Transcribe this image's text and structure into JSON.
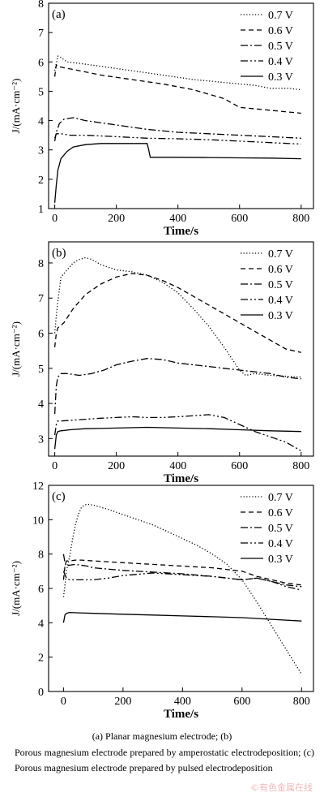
{
  "figure": {
    "caption_line1": "(a) Planar magnesium electrode; (b)",
    "caption_line2": "Porous magnesium electrode prepared by amperostatic electrodeposition; (c) Porous magnesium electrode prepared by pulsed electrodeposition",
    "watermark": "©有色金属在线"
  },
  "chart_data": [
    {
      "type": "line",
      "panel_label": "(a)",
      "xlabel": "Time/s",
      "ylabel": "J/(mA·cm⁻²)",
      "xlim": [
        -20,
        840
      ],
      "ylim": [
        1,
        8
      ],
      "xticks": [
        0,
        200,
        400,
        600,
        800
      ],
      "yticks": [
        1,
        2,
        3,
        4,
        5,
        6,
        7,
        8
      ],
      "grid": false,
      "legend_position": "top-right",
      "series": [
        {
          "name": "0.7 V",
          "dash": "1.2 2.4",
          "x": [
            0,
            10,
            20,
            40,
            80,
            150,
            250,
            350,
            450,
            550,
            650,
            700,
            760,
            800
          ],
          "y": [
            5.7,
            6.2,
            6.15,
            6.0,
            5.95,
            5.85,
            5.7,
            5.55,
            5.4,
            5.3,
            5.2,
            5.1,
            5.1,
            5.05
          ]
        },
        {
          "name": "0.6 V",
          "dash": "6 4",
          "x": [
            0,
            5,
            10,
            30,
            80,
            150,
            250,
            350,
            450,
            550,
            600,
            650,
            700,
            800
          ],
          "y": [
            5.5,
            5.9,
            5.85,
            5.8,
            5.7,
            5.55,
            5.4,
            5.25,
            5.05,
            4.75,
            4.45,
            4.4,
            4.35,
            4.25
          ]
        },
        {
          "name": "0.5 V",
          "dash": "9 3 2 3",
          "x": [
            0,
            5,
            15,
            30,
            60,
            100,
            200,
            300,
            400,
            500,
            600,
            700,
            800
          ],
          "y": [
            3.3,
            3.6,
            3.9,
            4.05,
            4.1,
            4.0,
            3.85,
            3.7,
            3.6,
            3.55,
            3.5,
            3.45,
            3.4
          ]
        },
        {
          "name": "0.4 V",
          "dash": "9 3 2 3 2 3",
          "x": [
            0,
            5,
            20,
            50,
            100,
            200,
            300,
            400,
            500,
            600,
            700,
            800
          ],
          "y": [
            3.4,
            3.55,
            3.55,
            3.5,
            3.5,
            3.45,
            3.4,
            3.38,
            3.35,
            3.3,
            3.25,
            3.2
          ]
        },
        {
          "name": "0.3 V",
          "dash": "",
          "x": [
            0,
            5,
            10,
            20,
            40,
            60,
            100,
            150,
            200,
            250,
            300,
            305,
            310,
            400,
            500,
            600,
            700,
            800
          ],
          "y": [
            1.2,
            1.8,
            2.3,
            2.7,
            2.95,
            3.1,
            3.18,
            3.22,
            3.22,
            3.22,
            3.22,
            3.0,
            2.75,
            2.75,
            2.74,
            2.73,
            2.72,
            2.7
          ]
        }
      ]
    },
    {
      "type": "line",
      "panel_label": "(b)",
      "xlabel": "Time/s",
      "ylabel": "J/(mA·cm⁻²)",
      "xlim": [
        -20,
        840
      ],
      "ylim": [
        2.5,
        8.6
      ],
      "xticks": [
        0,
        200,
        400,
        600,
        800
      ],
      "yticks": [
        3,
        4,
        5,
        6,
        7,
        8
      ],
      "grid": false,
      "legend_position": "top-right",
      "series": [
        {
          "name": "0.7 V",
          "dash": "1.2 2.4",
          "x": [
            0,
            5,
            10,
            20,
            40,
            60,
            80,
            100,
            120,
            150,
            200,
            250,
            300,
            350,
            400,
            450,
            500,
            550,
            600,
            620,
            650,
            700,
            800
          ],
          "y": [
            6.0,
            6.5,
            6.9,
            7.6,
            7.8,
            8.0,
            8.1,
            8.15,
            8.1,
            7.95,
            7.8,
            7.75,
            7.65,
            7.45,
            7.15,
            6.7,
            6.2,
            5.6,
            4.95,
            4.8,
            4.85,
            4.8,
            4.75
          ]
        },
        {
          "name": "0.6 V",
          "dash": "6 4",
          "x": [
            0,
            5,
            10,
            30,
            60,
            100,
            150,
            200,
            250,
            300,
            350,
            400,
            450,
            500,
            550,
            600,
            650,
            700,
            750,
            800
          ],
          "y": [
            5.6,
            6.0,
            6.15,
            6.3,
            6.7,
            7.1,
            7.4,
            7.6,
            7.7,
            7.65,
            7.5,
            7.3,
            7.05,
            6.8,
            6.55,
            6.3,
            6.05,
            5.8,
            5.55,
            5.45
          ]
        },
        {
          "name": "0.5 V",
          "dash": "9 3 2 3",
          "x": [
            0,
            5,
            10,
            20,
            40,
            80,
            120,
            160,
            200,
            250,
            300,
            350,
            400,
            450,
            500,
            550,
            600,
            650,
            700,
            750,
            800
          ],
          "y": [
            3.7,
            4.5,
            4.75,
            4.85,
            4.85,
            4.8,
            4.85,
            4.95,
            5.1,
            5.2,
            5.28,
            5.25,
            5.15,
            5.1,
            5.05,
            5.0,
            4.95,
            4.9,
            4.85,
            4.75,
            4.7
          ]
        },
        {
          "name": "0.4 V",
          "dash": "9 3 2 3 2 3",
          "x": [
            0,
            5,
            10,
            20,
            50,
            100,
            150,
            200,
            250,
            300,
            350,
            400,
            450,
            500,
            550,
            600,
            650,
            700,
            750,
            800
          ],
          "y": [
            3.1,
            3.4,
            3.5,
            3.5,
            3.52,
            3.55,
            3.58,
            3.6,
            3.62,
            3.6,
            3.6,
            3.62,
            3.65,
            3.68,
            3.6,
            3.4,
            3.2,
            3.05,
            2.9,
            2.65
          ]
        },
        {
          "name": "0.3 V",
          "dash": "",
          "x": [
            0,
            5,
            10,
            20,
            50,
            100,
            200,
            300,
            400,
            500,
            600,
            700,
            800
          ],
          "y": [
            2.7,
            3.1,
            3.2,
            3.22,
            3.25,
            3.28,
            3.3,
            3.32,
            3.3,
            3.28,
            3.25,
            3.22,
            3.2
          ]
        }
      ]
    },
    {
      "type": "line",
      "panel_label": "(c)",
      "xlabel": "Time/s",
      "ylabel": "J/(mA·cm⁻²)",
      "xlim": [
        -50,
        840
      ],
      "ylim": [
        0,
        12
      ],
      "xticks": [
        0,
        200,
        400,
        600,
        800
      ],
      "yticks": [
        0,
        2,
        4,
        6,
        8,
        10,
        12
      ],
      "grid": false,
      "legend_position": "top-right",
      "series": [
        {
          "name": "0.7 V",
          "dash": "1.2 2.4",
          "x": [
            0,
            5,
            10,
            20,
            30,
            40,
            50,
            60,
            70,
            80,
            100,
            150,
            200,
            250,
            300,
            350,
            400,
            450,
            500,
            550,
            600,
            650,
            700,
            750,
            800
          ],
          "y": [
            5.5,
            6.2,
            7.0,
            7.8,
            8.8,
            9.7,
            10.3,
            10.7,
            10.85,
            10.9,
            10.85,
            10.6,
            10.3,
            10.0,
            9.7,
            9.3,
            8.9,
            8.5,
            8.0,
            7.4,
            6.5,
            5.2,
            3.8,
            2.4,
            1.0
          ]
        },
        {
          "name": "0.6 V",
          "dash": "6 4",
          "x": [
            0,
            5,
            10,
            20,
            40,
            60,
            100,
            200,
            300,
            400,
            500,
            600,
            650,
            700,
            750,
            800
          ],
          "y": [
            6.5,
            7.3,
            7.6,
            7.6,
            7.65,
            7.65,
            7.6,
            7.5,
            7.4,
            7.3,
            7.2,
            7.0,
            6.7,
            6.5,
            6.3,
            6.2
          ]
        },
        {
          "name": "0.5 V",
          "dash": "9 3 2 3",
          "x": [
            0,
            5,
            10,
            20,
            40,
            80,
            100,
            200,
            300,
            400,
            500,
            600,
            650,
            700,
            750,
            800
          ],
          "y": [
            8.0,
            7.5,
            7.3,
            7.35,
            7.4,
            7.3,
            7.2,
            7.05,
            6.95,
            6.85,
            6.7,
            6.5,
            6.6,
            6.4,
            6.2,
            6.1
          ]
        },
        {
          "name": "0.4 V",
          "dash": "9 3 2 3 2 3",
          "x": [
            0,
            5,
            10,
            20,
            40,
            60,
            100,
            150,
            200,
            300,
            400,
            500,
            600,
            650,
            700,
            750,
            800
          ],
          "y": [
            7.0,
            6.8,
            6.6,
            6.5,
            6.5,
            6.5,
            6.5,
            6.6,
            6.75,
            6.9,
            6.8,
            6.7,
            6.5,
            6.6,
            6.4,
            6.1,
            5.9
          ]
        },
        {
          "name": "0.3 V",
          "dash": "",
          "x": [
            0,
            5,
            10,
            20,
            50,
            100,
            200,
            300,
            400,
            500,
            600,
            700,
            800
          ],
          "y": [
            4.0,
            4.45,
            4.55,
            4.6,
            4.58,
            4.55,
            4.5,
            4.45,
            4.4,
            4.35,
            4.3,
            4.2,
            4.1
          ]
        }
      ]
    }
  ]
}
